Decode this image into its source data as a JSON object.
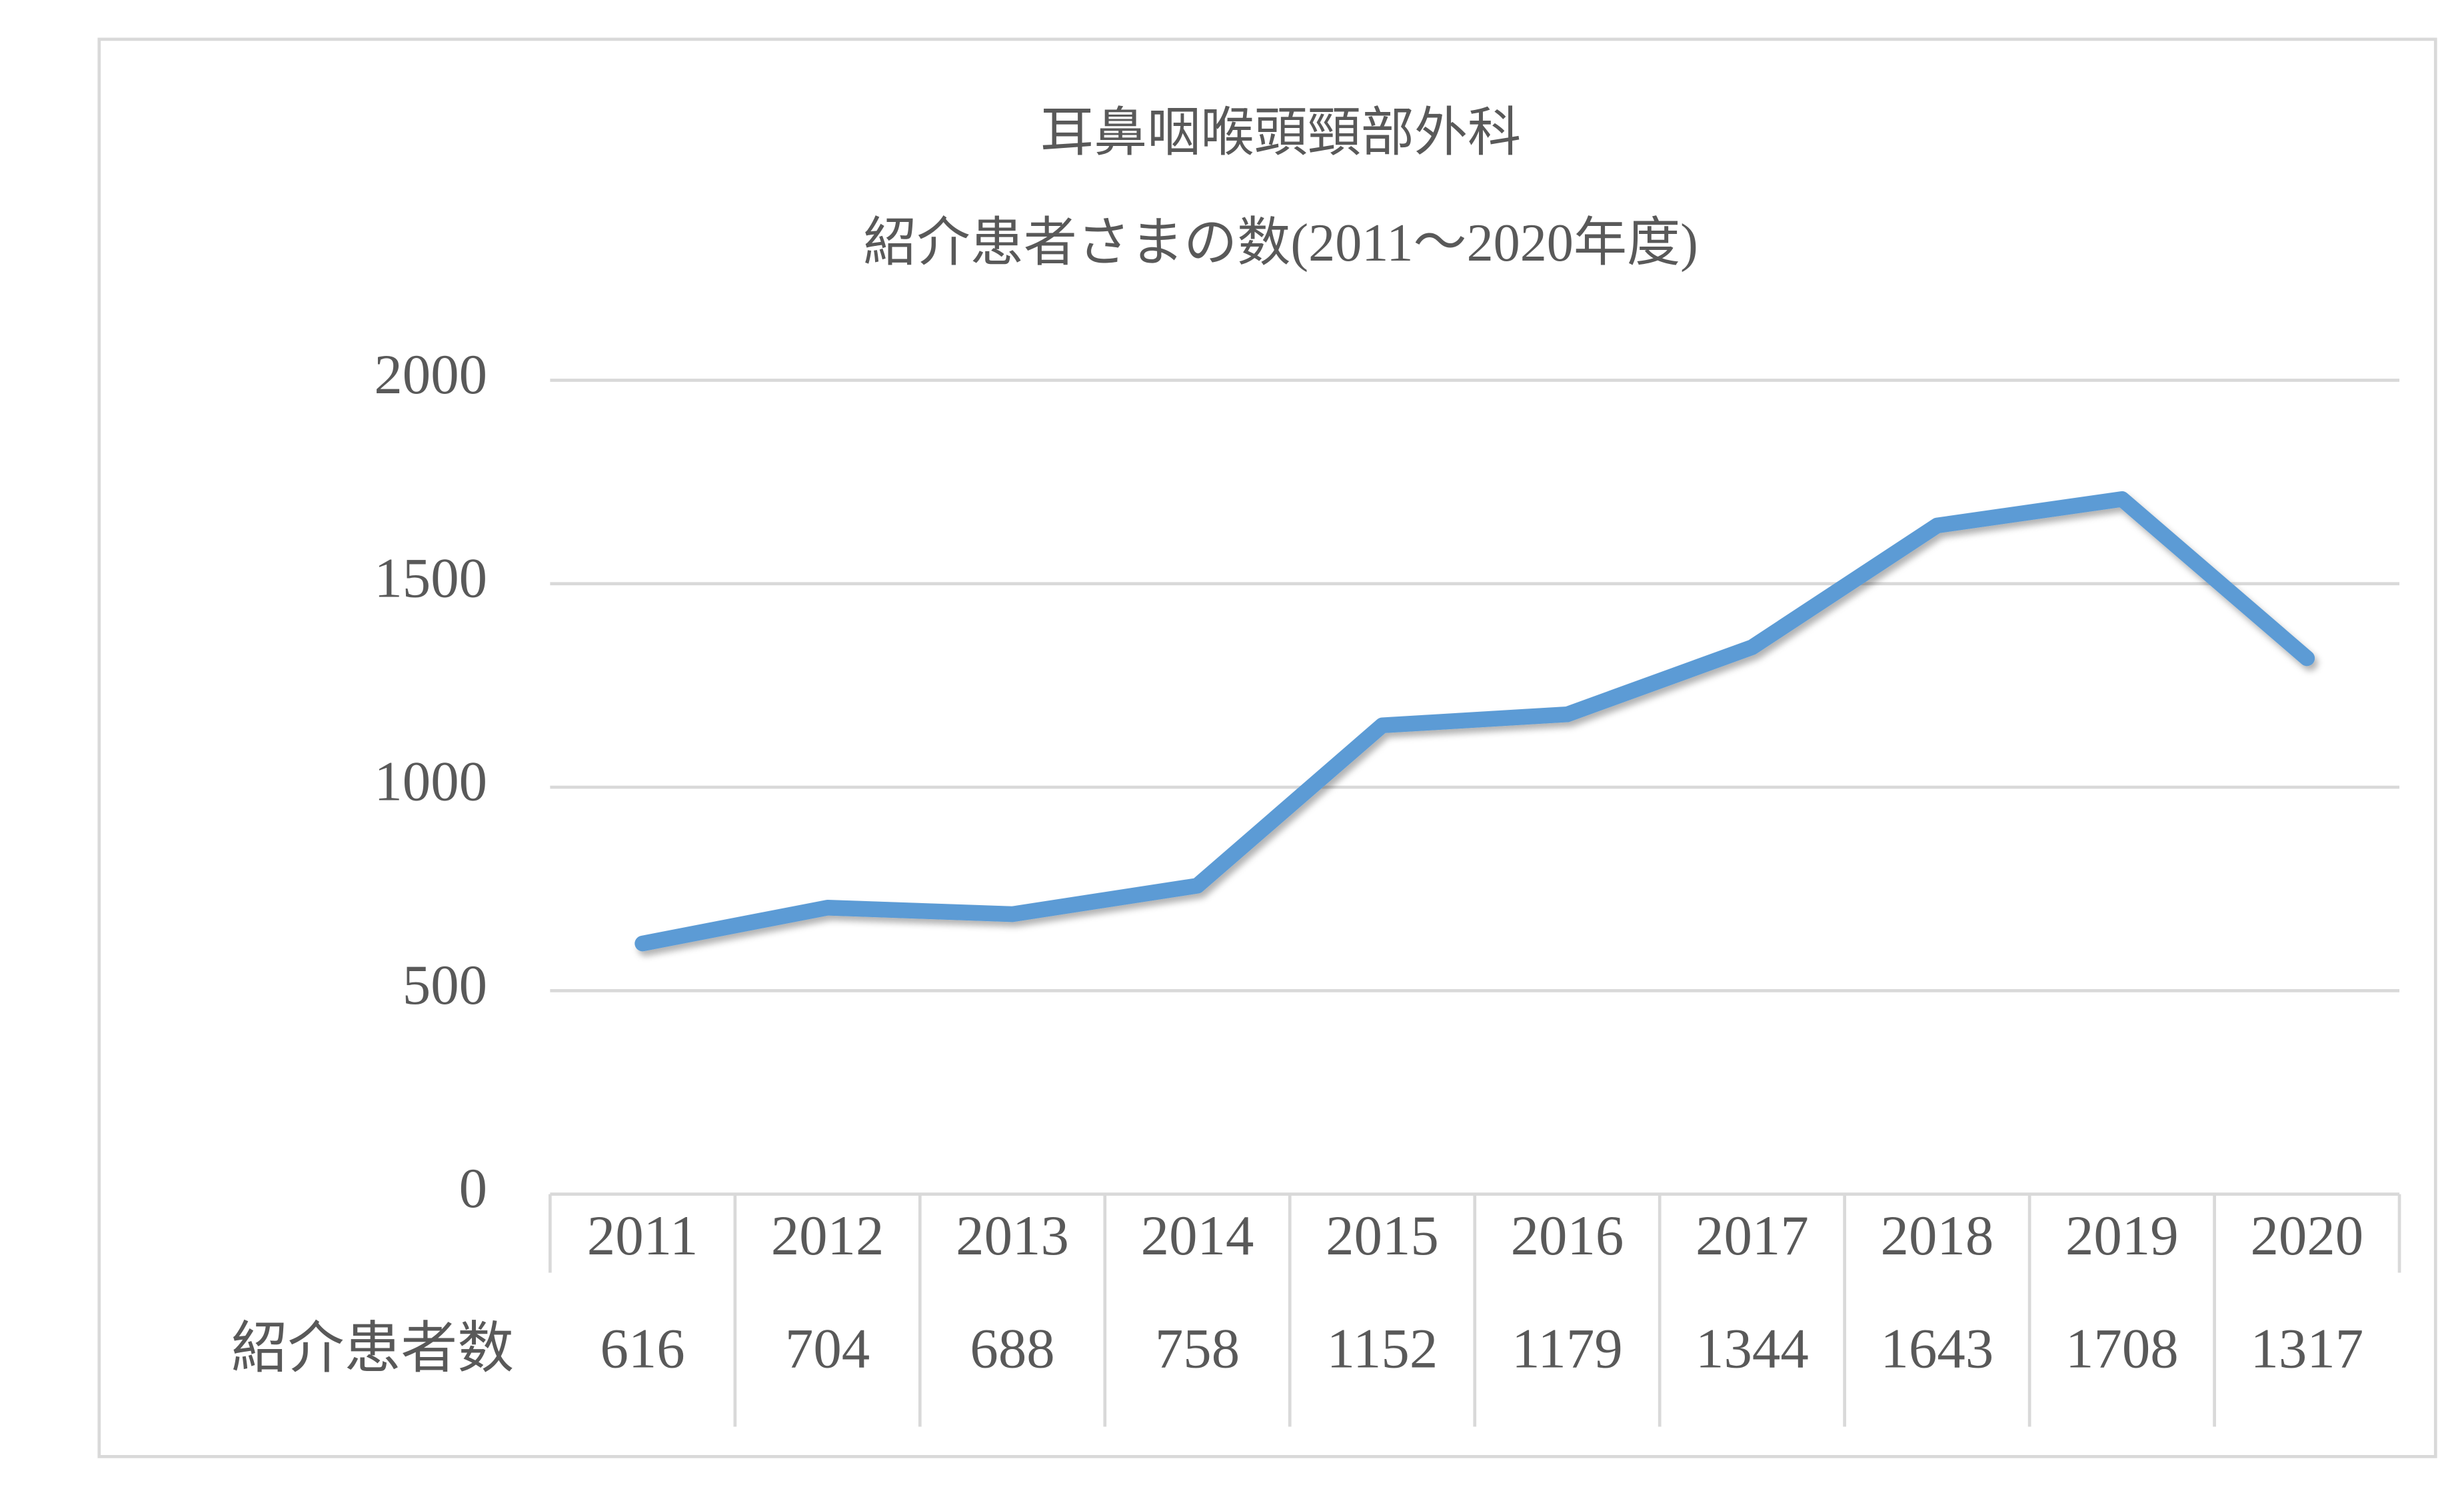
{
  "chart_data": {
    "type": "line",
    "title": "耳鼻咽喉頭頸部外科",
    "subtitle": "紹介患者さまの数(2011～2020年度)",
    "categories": [
      "2011",
      "2012",
      "2013",
      "2014",
      "2015",
      "2016",
      "2017",
      "2018",
      "2019",
      "2020"
    ],
    "series": [
      {
        "name": "紹介患者数",
        "color": "#5b9bd5",
        "values": [
          616,
          704,
          688,
          758,
          1152,
          1179,
          1344,
          1643,
          1708,
          1317
        ]
      }
    ],
    "ylim": [
      0,
      2000
    ],
    "yticks": [
      0,
      500,
      1000,
      1500,
      2000
    ],
    "grid": true,
    "data_table": true
  }
}
